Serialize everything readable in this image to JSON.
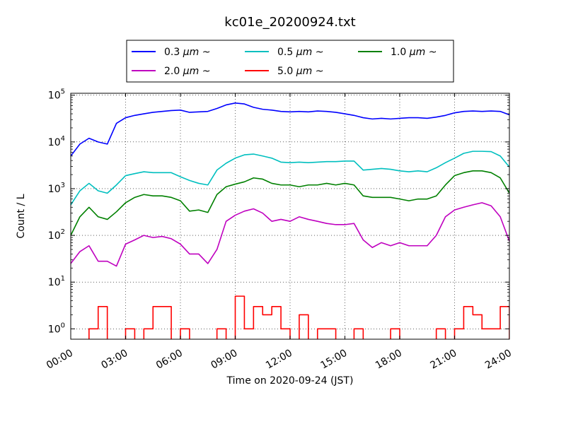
{
  "chart_data": {
    "type": "line",
    "title": "kc01e_20200924.txt",
    "xlabel": "Time on 2020-09-24 (JST)",
    "ylabel": "Count / L",
    "yscale": "log",
    "ylim": [
      0.6,
      110000
    ],
    "xlim": [
      "00:00",
      "24:00"
    ],
    "grid": true,
    "legend_position": "top (outside plot, 3 columns)",
    "x_tick_labels": [
      "00:00",
      "03:00",
      "06:00",
      "09:00",
      "12:00",
      "15:00",
      "18:00",
      "21:00",
      "24:00"
    ],
    "y_ticks": [
      {
        "value": 1,
        "base": "10",
        "exp": "0"
      },
      {
        "value": 10,
        "base": "10",
        "exp": "1"
      },
      {
        "value": 100,
        "base": "10",
        "exp": "2"
      },
      {
        "value": 1000,
        "base": "10",
        "exp": "3"
      },
      {
        "value": 10000,
        "base": "10",
        "exp": "4"
      },
      {
        "value": 100000,
        "base": "10",
        "exp": "5"
      }
    ],
    "x_hours": [
      0,
      0.5,
      1,
      1.5,
      2,
      2.5,
      3,
      3.5,
      4,
      4.5,
      5,
      5.5,
      6,
      6.5,
      7,
      7.5,
      8,
      8.5,
      9,
      9.5,
      10,
      10.5,
      11,
      11.5,
      12,
      12.5,
      13,
      13.5,
      14,
      14.5,
      15,
      15.5,
      16,
      16.5,
      17,
      17.5,
      18,
      18.5,
      19,
      19.5,
      20,
      20.5,
      21,
      21.5,
      22,
      22.5,
      23,
      23.5,
      24
    ],
    "series": [
      {
        "name": "0.3",
        "unit": "μm",
        "suffix": "~",
        "color": "#0000ff",
        "values": [
          5000,
          9000,
          12000,
          10000,
          9000,
          25000,
          33000,
          37000,
          40000,
          43000,
          45000,
          47000,
          48000,
          43000,
          44000,
          45000,
          52000,
          62000,
          68000,
          65000,
          55000,
          50000,
          48000,
          45000,
          44000,
          45000,
          44000,
          46000,
          45000,
          43000,
          40000,
          37000,
          33000,
          31000,
          32000,
          31000,
          32000,
          33000,
          33000,
          32000,
          34000,
          37000,
          42000,
          45000,
          46000,
          45000,
          46000,
          45000,
          38000
        ]
      },
      {
        "name": "0.5",
        "unit": "μm",
        "suffix": "~",
        "color": "#00bfbf",
        "values": [
          450,
          900,
          1300,
          900,
          800,
          1200,
          1900,
          2100,
          2300,
          2200,
          2200,
          2200,
          1800,
          1500,
          1300,
          1200,
          2500,
          3500,
          4500,
          5300,
          5500,
          5000,
          4500,
          3700,
          3600,
          3700,
          3600,
          3700,
          3800,
          3800,
          3900,
          3900,
          2500,
          2600,
          2700,
          2600,
          2400,
          2300,
          2400,
          2300,
          2800,
          3600,
          4500,
          5700,
          6300,
          6300,
          6200,
          5000,
          2900
        ]
      },
      {
        "name": "1.0",
        "unit": "μm",
        "suffix": "~",
        "color": "#008000",
        "values": [
          100,
          250,
          400,
          250,
          220,
          320,
          500,
          650,
          750,
          700,
          700,
          650,
          550,
          330,
          350,
          310,
          750,
          1100,
          1250,
          1400,
          1700,
          1600,
          1300,
          1200,
          1200,
          1100,
          1200,
          1200,
          1300,
          1200,
          1300,
          1200,
          700,
          650,
          650,
          650,
          600,
          550,
          600,
          600,
          700,
          1200,
          1900,
          2200,
          2400,
          2400,
          2200,
          1700,
          800
        ]
      },
      {
        "name": "2.0",
        "unit": "μm",
        "suffix": "~",
        "color": "#bf00bf",
        "values": [
          25,
          45,
          60,
          28,
          28,
          22,
          65,
          80,
          100,
          90,
          95,
          85,
          65,
          40,
          40,
          25,
          50,
          200,
          270,
          330,
          370,
          300,
          200,
          220,
          200,
          250,
          220,
          200,
          180,
          170,
          170,
          180,
          80,
          55,
          70,
          60,
          70,
          60,
          60,
          60,
          100,
          250,
          350,
          400,
          450,
          500,
          430,
          250,
          75
        ]
      },
      {
        "name": "5.0",
        "unit": "μm",
        "suffix": "~",
        "color": "#ff0000",
        "values": [
          0,
          0,
          1,
          3,
          0,
          0,
          1,
          0,
          1,
          3,
          3,
          0,
          1,
          0,
          0,
          0,
          1,
          0,
          5,
          1,
          3,
          2,
          3,
          1,
          0,
          2,
          0,
          1,
          1,
          0,
          0,
          1,
          0,
          0,
          0,
          1,
          0,
          0,
          0,
          0,
          1,
          0,
          1,
          3,
          2,
          1,
          1,
          3,
          0
        ]
      }
    ]
  }
}
